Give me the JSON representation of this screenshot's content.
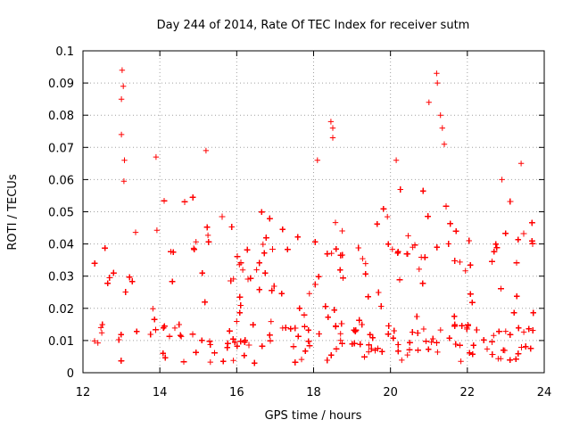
{
  "chart_data": {
    "type": "scatter",
    "title": "Day 244 of 2014, Rate Of TEC Index for receiver sutm",
    "xlabel": "GPS time / hours",
    "ylabel": "ROTI / TECUs",
    "xlim": [
      12,
      24
    ],
    "ylim": [
      0,
      0.1
    ],
    "xticks": [
      "12",
      "14",
      "16",
      "18",
      "20",
      "22",
      "24"
    ],
    "yticks": [
      "0",
      "0.01",
      "0.02",
      "0.03",
      "0.04",
      "0.05",
      "0.06",
      "0.07",
      "0.08",
      "0.09",
      "0.1"
    ],
    "grid": true,
    "marker": "plus",
    "color": "#ff0000",
    "time_range_hours": [
      12.3,
      23.75
    ],
    "envelope": [
      {
        "x": 12.3,
        "upper": 0.054
      },
      {
        "x": 12.6,
        "upper": 0.048
      },
      {
        "x": 13.0,
        "upper": 0.062
      },
      {
        "x": 13.5,
        "upper": 0.05
      },
      {
        "x": 14.0,
        "upper": 0.062
      },
      {
        "x": 14.5,
        "upper": 0.05
      },
      {
        "x": 15.0,
        "upper": 0.066
      },
      {
        "x": 15.5,
        "upper": 0.05
      },
      {
        "x": 16.0,
        "upper": 0.052
      },
      {
        "x": 16.5,
        "upper": 0.055
      },
      {
        "x": 17.0,
        "upper": 0.05
      },
      {
        "x": 17.5,
        "upper": 0.047
      },
      {
        "x": 18.0,
        "upper": 0.058
      },
      {
        "x": 18.5,
        "upper": 0.052
      },
      {
        "x": 19.0,
        "upper": 0.048
      },
      {
        "x": 19.5,
        "upper": 0.05
      },
      {
        "x": 20.0,
        "upper": 0.055
      },
      {
        "x": 20.5,
        "upper": 0.06
      },
      {
        "x": 21.0,
        "upper": 0.07
      },
      {
        "x": 21.5,
        "upper": 0.055
      },
      {
        "x": 22.0,
        "upper": 0.05
      },
      {
        "x": 22.5,
        "upper": 0.05
      },
      {
        "x": 23.0,
        "upper": 0.058
      },
      {
        "x": 23.5,
        "upper": 0.06
      },
      {
        "x": 23.75,
        "upper": 0.055
      }
    ],
    "notable_points": [
      {
        "x": 13.02,
        "y": 0.094
      },
      {
        "x": 13.05,
        "y": 0.089
      },
      {
        "x": 13.0,
        "y": 0.085
      },
      {
        "x": 13.0,
        "y": 0.074
      },
      {
        "x": 13.08,
        "y": 0.066
      },
      {
        "x": 13.9,
        "y": 0.067
      },
      {
        "x": 15.2,
        "y": 0.069
      },
      {
        "x": 18.1,
        "y": 0.066
      },
      {
        "x": 18.45,
        "y": 0.078
      },
      {
        "x": 18.5,
        "y": 0.076
      },
      {
        "x": 18.5,
        "y": 0.073
      },
      {
        "x": 20.15,
        "y": 0.066
      },
      {
        "x": 21.0,
        "y": 0.084
      },
      {
        "x": 21.2,
        "y": 0.093
      },
      {
        "x": 21.22,
        "y": 0.09
      },
      {
        "x": 21.3,
        "y": 0.08
      },
      {
        "x": 21.35,
        "y": 0.076
      },
      {
        "x": 21.4,
        "y": 0.071
      },
      {
        "x": 23.4,
        "y": 0.065
      },
      {
        "x": 22.9,
        "y": 0.06
      }
    ]
  }
}
